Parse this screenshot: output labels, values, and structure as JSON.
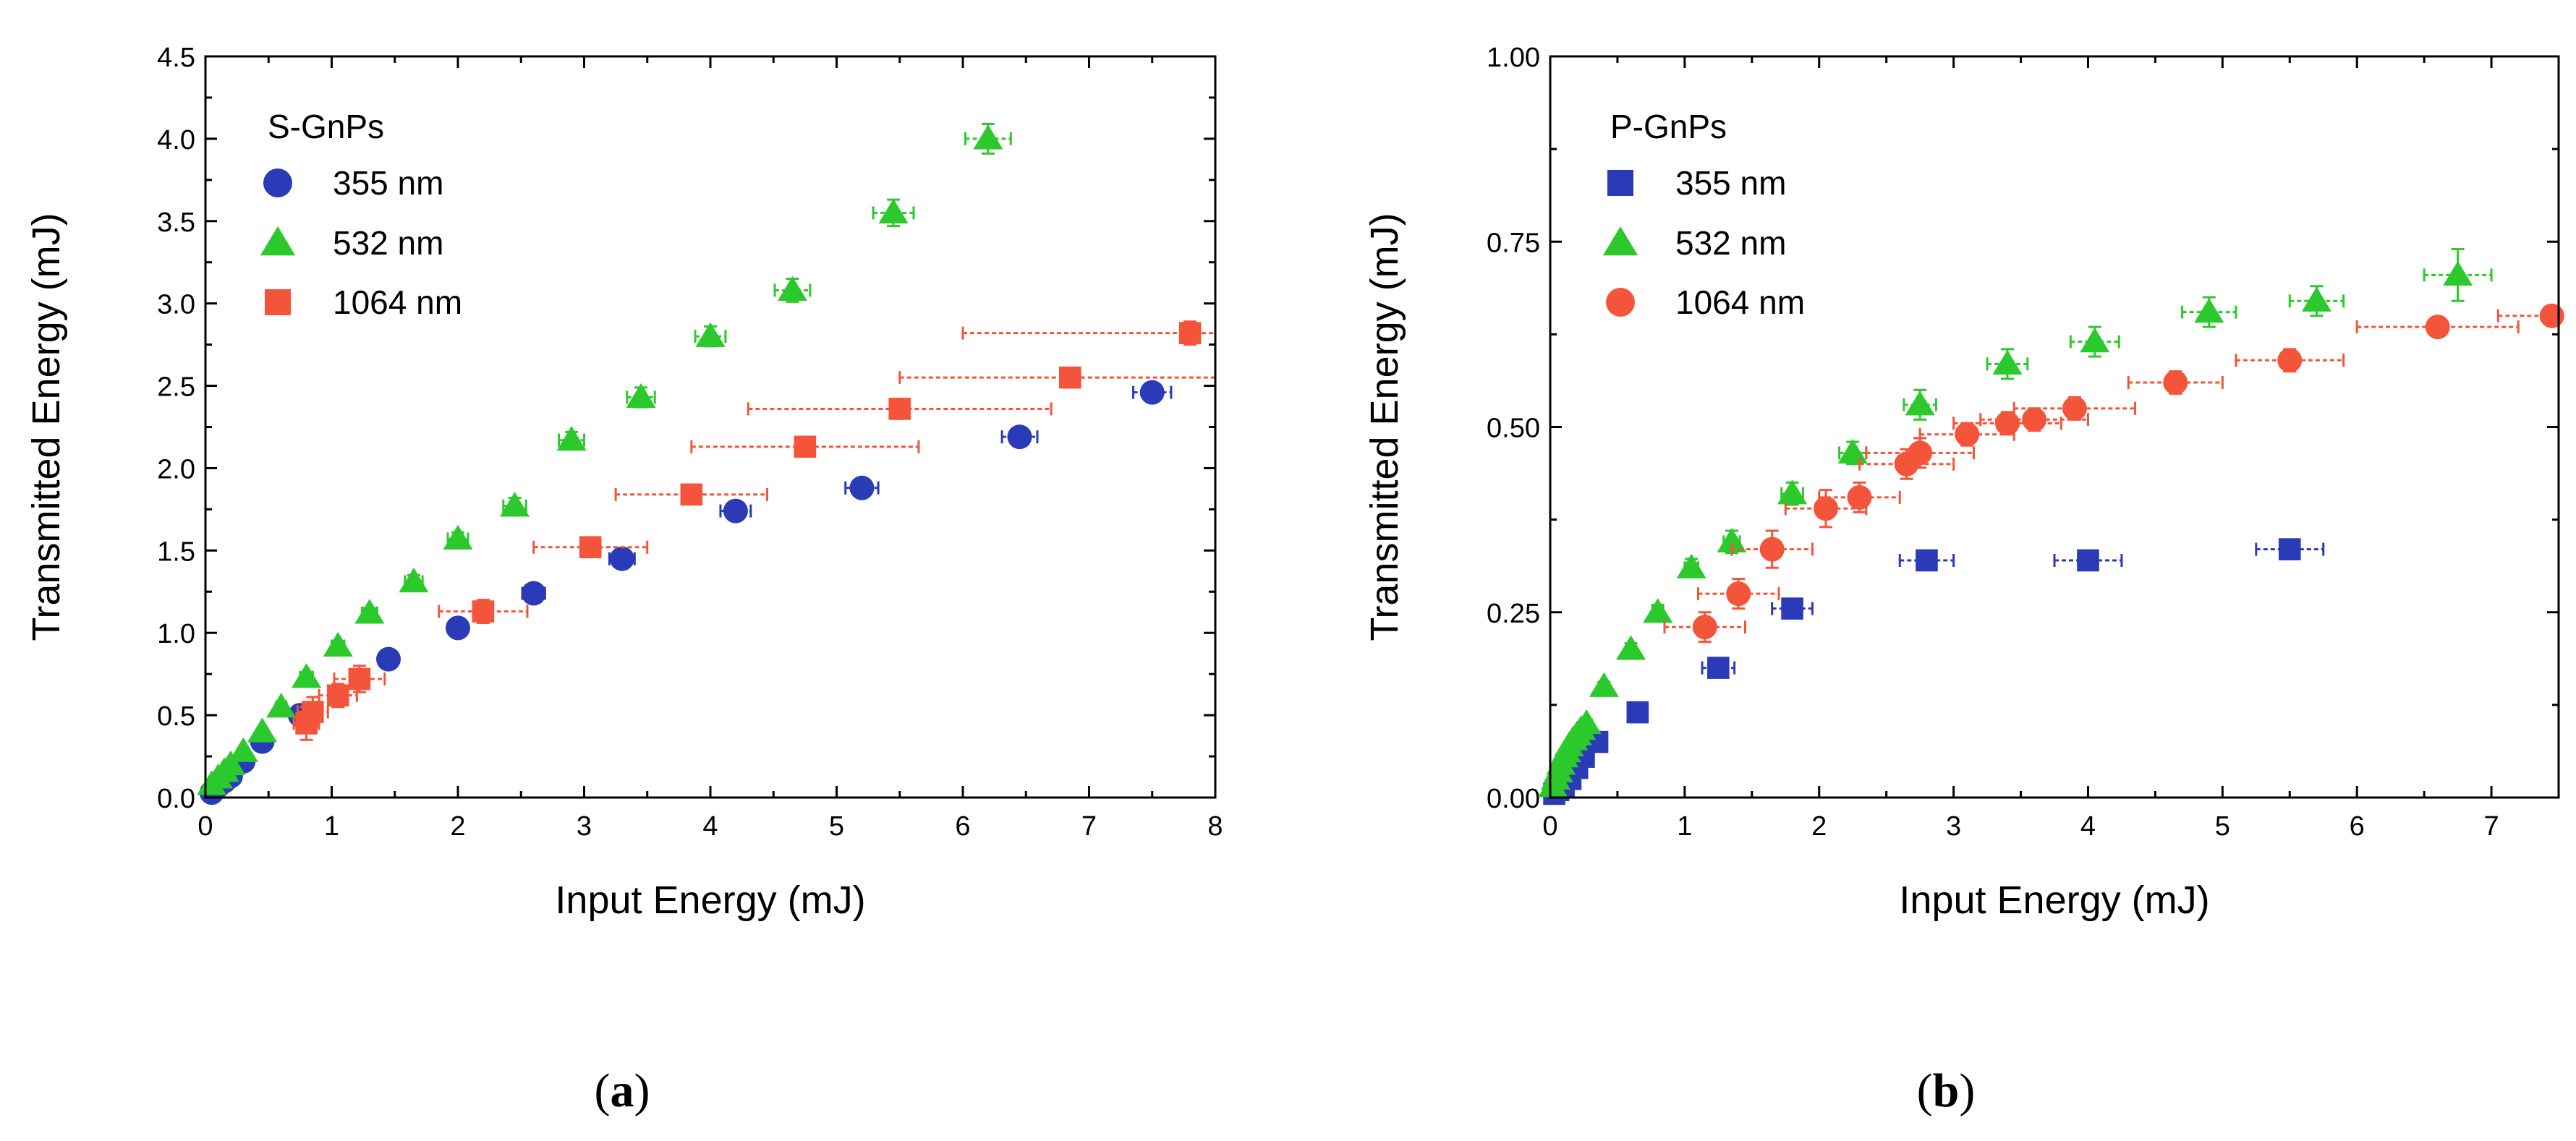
{
  "chart_data": [
    {
      "panel_id": "a",
      "type": "scatter",
      "caption": "a",
      "xlabel": "Input Energy (mJ)",
      "ylabel": "Transmitted Energy (mJ)",
      "xlim": [
        0,
        8
      ],
      "ylim": [
        0,
        4.5
      ],
      "x_ticks": [
        "0",
        "1",
        "2",
        "3",
        "4",
        "5",
        "6",
        "7",
        "8"
      ],
      "y_ticks": [
        "0.0",
        "0.5",
        "1.0",
        "1.5",
        "2.0",
        "2.5",
        "3.0",
        "3.5",
        "4.0",
        "4.5"
      ],
      "legend_title": "S-GnPs",
      "legend_position": "top-left",
      "series": [
        {
          "name": "355 nm",
          "marker": "circle",
          "color": "#2b3bb8",
          "x": [
            0.05,
            0.1,
            0.15,
            0.2,
            0.3,
            0.45,
            0.75,
            1.45,
            2.0,
            2.6,
            3.3,
            4.2,
            5.2,
            6.45,
            7.5
          ],
          "y": [
            0.03,
            0.07,
            0.1,
            0.13,
            0.22,
            0.34,
            0.5,
            0.84,
            1.03,
            1.24,
            1.45,
            1.74,
            1.88,
            2.19,
            2.46
          ],
          "xerr": [
            0.01,
            0.01,
            0.02,
            0.02,
            0.03,
            0.04,
            0.05,
            0.05,
            0.07,
            0.09,
            0.1,
            0.12,
            0.13,
            0.14,
            0.15
          ],
          "yerr": [
            0.01,
            0.01,
            0.01,
            0.01,
            0.02,
            0.02,
            0.02,
            0.03,
            0.03,
            0.04,
            0.04,
            0.05,
            0.05,
            0.05,
            0.05
          ]
        },
        {
          "name": "532 nm",
          "marker": "triangle",
          "color": "#2cc92c",
          "x": [
            0.05,
            0.1,
            0.15,
            0.2,
            0.3,
            0.45,
            0.6,
            0.8,
            1.05,
            1.3,
            1.65,
            2.0,
            2.45,
            2.9,
            3.45,
            4.0,
            4.65,
            5.45,
            6.2
          ],
          "y": [
            0.08,
            0.12,
            0.16,
            0.2,
            0.28,
            0.4,
            0.55,
            0.73,
            0.92,
            1.12,
            1.31,
            1.57,
            1.77,
            2.17,
            2.43,
            2.8,
            3.08,
            3.55,
            4.0
          ],
          "xerr": [
            0.01,
            0.01,
            0.02,
            0.02,
            0.03,
            0.03,
            0.04,
            0.05,
            0.05,
            0.06,
            0.07,
            0.08,
            0.09,
            0.1,
            0.11,
            0.12,
            0.14,
            0.16,
            0.18
          ],
          "yerr": [
            0.01,
            0.01,
            0.01,
            0.01,
            0.02,
            0.02,
            0.02,
            0.03,
            0.03,
            0.03,
            0.04,
            0.04,
            0.05,
            0.05,
            0.06,
            0.06,
            0.07,
            0.08,
            0.09
          ]
        },
        {
          "name": "1064 nm",
          "marker": "square",
          "color": "#f4553a",
          "x": [
            0.8,
            0.85,
            1.05,
            1.22,
            2.2,
            3.05,
            3.85,
            4.75,
            5.5,
            6.85,
            7.8
          ],
          "y": [
            0.45,
            0.52,
            0.62,
            0.72,
            1.13,
            1.52,
            1.84,
            2.13,
            2.36,
            2.55,
            2.82
          ],
          "xerr": [
            0.1,
            0.12,
            0.15,
            0.2,
            0.35,
            0.45,
            0.6,
            0.9,
            1.2,
            1.35,
            1.8
          ],
          "yerr": [
            0.1,
            0.09,
            0.07,
            0.08,
            0.07,
            0.06,
            0.06,
            0.06,
            0.06,
            0.06,
            0.07
          ]
        }
      ]
    },
    {
      "panel_id": "b",
      "type": "scatter",
      "caption": "b",
      "xlabel": "Input Energy (mJ)",
      "ylabel": "Transmitted Energy (mJ)",
      "xlim": [
        0,
        7.5
      ],
      "ylim": [
        0,
        1.0
      ],
      "x_ticks": [
        "0",
        "1",
        "2",
        "3",
        "4",
        "5",
        "6",
        "7"
      ],
      "y_ticks": [
        "0.00",
        "0.25",
        "0.50",
        "0.75",
        "1.00"
      ],
      "legend_title": "P-GnPs",
      "legend_position": "top-left",
      "series": [
        {
          "name": "355 nm",
          "marker": "square",
          "color": "#2b3bb8",
          "x": [
            0.03,
            0.06,
            0.1,
            0.15,
            0.2,
            0.25,
            0.35,
            0.65,
            1.25,
            1.8,
            2.8,
            4.0,
            5.5
          ],
          "y": [
            0.005,
            0.01,
            0.015,
            0.025,
            0.04,
            0.055,
            0.075,
            0.115,
            0.175,
            0.255,
            0.32,
            0.32,
            0.335
          ],
          "xerr": [
            0.01,
            0.01,
            0.01,
            0.02,
            0.02,
            0.02,
            0.03,
            0.06,
            0.12,
            0.15,
            0.2,
            0.25,
            0.25
          ],
          "yerr": [
            0.003,
            0.003,
            0.004,
            0.005,
            0.006,
            0.006,
            0.007,
            0.008,
            0.01,
            0.01,
            0.01,
            0.01,
            0.01
          ]
        },
        {
          "name": "532 nm",
          "marker": "triangle",
          "color": "#2cc92c",
          "x": [
            0.02,
            0.04,
            0.06,
            0.08,
            0.1,
            0.12,
            0.14,
            0.17,
            0.2,
            0.23,
            0.27,
            0.4,
            0.6,
            0.8,
            1.05,
            1.35,
            1.8,
            2.25,
            2.75,
            3.4,
            4.05,
            4.9,
            5.7,
            6.75
          ],
          "y": [
            0.015,
            0.025,
            0.035,
            0.045,
            0.055,
            0.062,
            0.07,
            0.078,
            0.085,
            0.092,
            0.1,
            0.15,
            0.2,
            0.25,
            0.31,
            0.345,
            0.41,
            0.465,
            0.53,
            0.585,
            0.615,
            0.655,
            0.67,
            0.705
          ],
          "xerr": [
            0.005,
            0.005,
            0.005,
            0.005,
            0.01,
            0.01,
            0.01,
            0.01,
            0.01,
            0.01,
            0.02,
            0.02,
            0.03,
            0.04,
            0.05,
            0.06,
            0.08,
            0.1,
            0.12,
            0.15,
            0.18,
            0.2,
            0.2,
            0.25
          ],
          "yerr": [
            0.003,
            0.003,
            0.003,
            0.003,
            0.004,
            0.004,
            0.004,
            0.004,
            0.005,
            0.005,
            0.005,
            0.006,
            0.008,
            0.01,
            0.012,
            0.015,
            0.015,
            0.015,
            0.02,
            0.02,
            0.02,
            0.02,
            0.02,
            0.035
          ]
        },
        {
          "name": "1064 nm",
          "marker": "circle",
          "color": "#f4553a",
          "x": [
            1.15,
            1.4,
            1.65,
            2.05,
            2.3,
            2.65,
            2.75,
            3.1,
            3.4,
            3.6,
            3.9,
            4.65,
            5.5,
            6.6,
            7.45
          ],
          "y": [
            0.23,
            0.275,
            0.335,
            0.39,
            0.405,
            0.45,
            0.465,
            0.49,
            0.505,
            0.51,
            0.525,
            0.56,
            0.59,
            0.635,
            0.65
          ],
          "xerr": [
            0.3,
            0.3,
            0.3,
            0.3,
            0.3,
            0.35,
            0.4,
            0.35,
            0.4,
            0.4,
            0.45,
            0.35,
            0.4,
            0.6,
            0.4
          ],
          "yerr": [
            0.02,
            0.02,
            0.025,
            0.025,
            0.02,
            0.02,
            0.02,
            0.015,
            0.015,
            0.015,
            0.015,
            0.015,
            0.015,
            0.01,
            0.01
          ]
        }
      ]
    }
  ]
}
